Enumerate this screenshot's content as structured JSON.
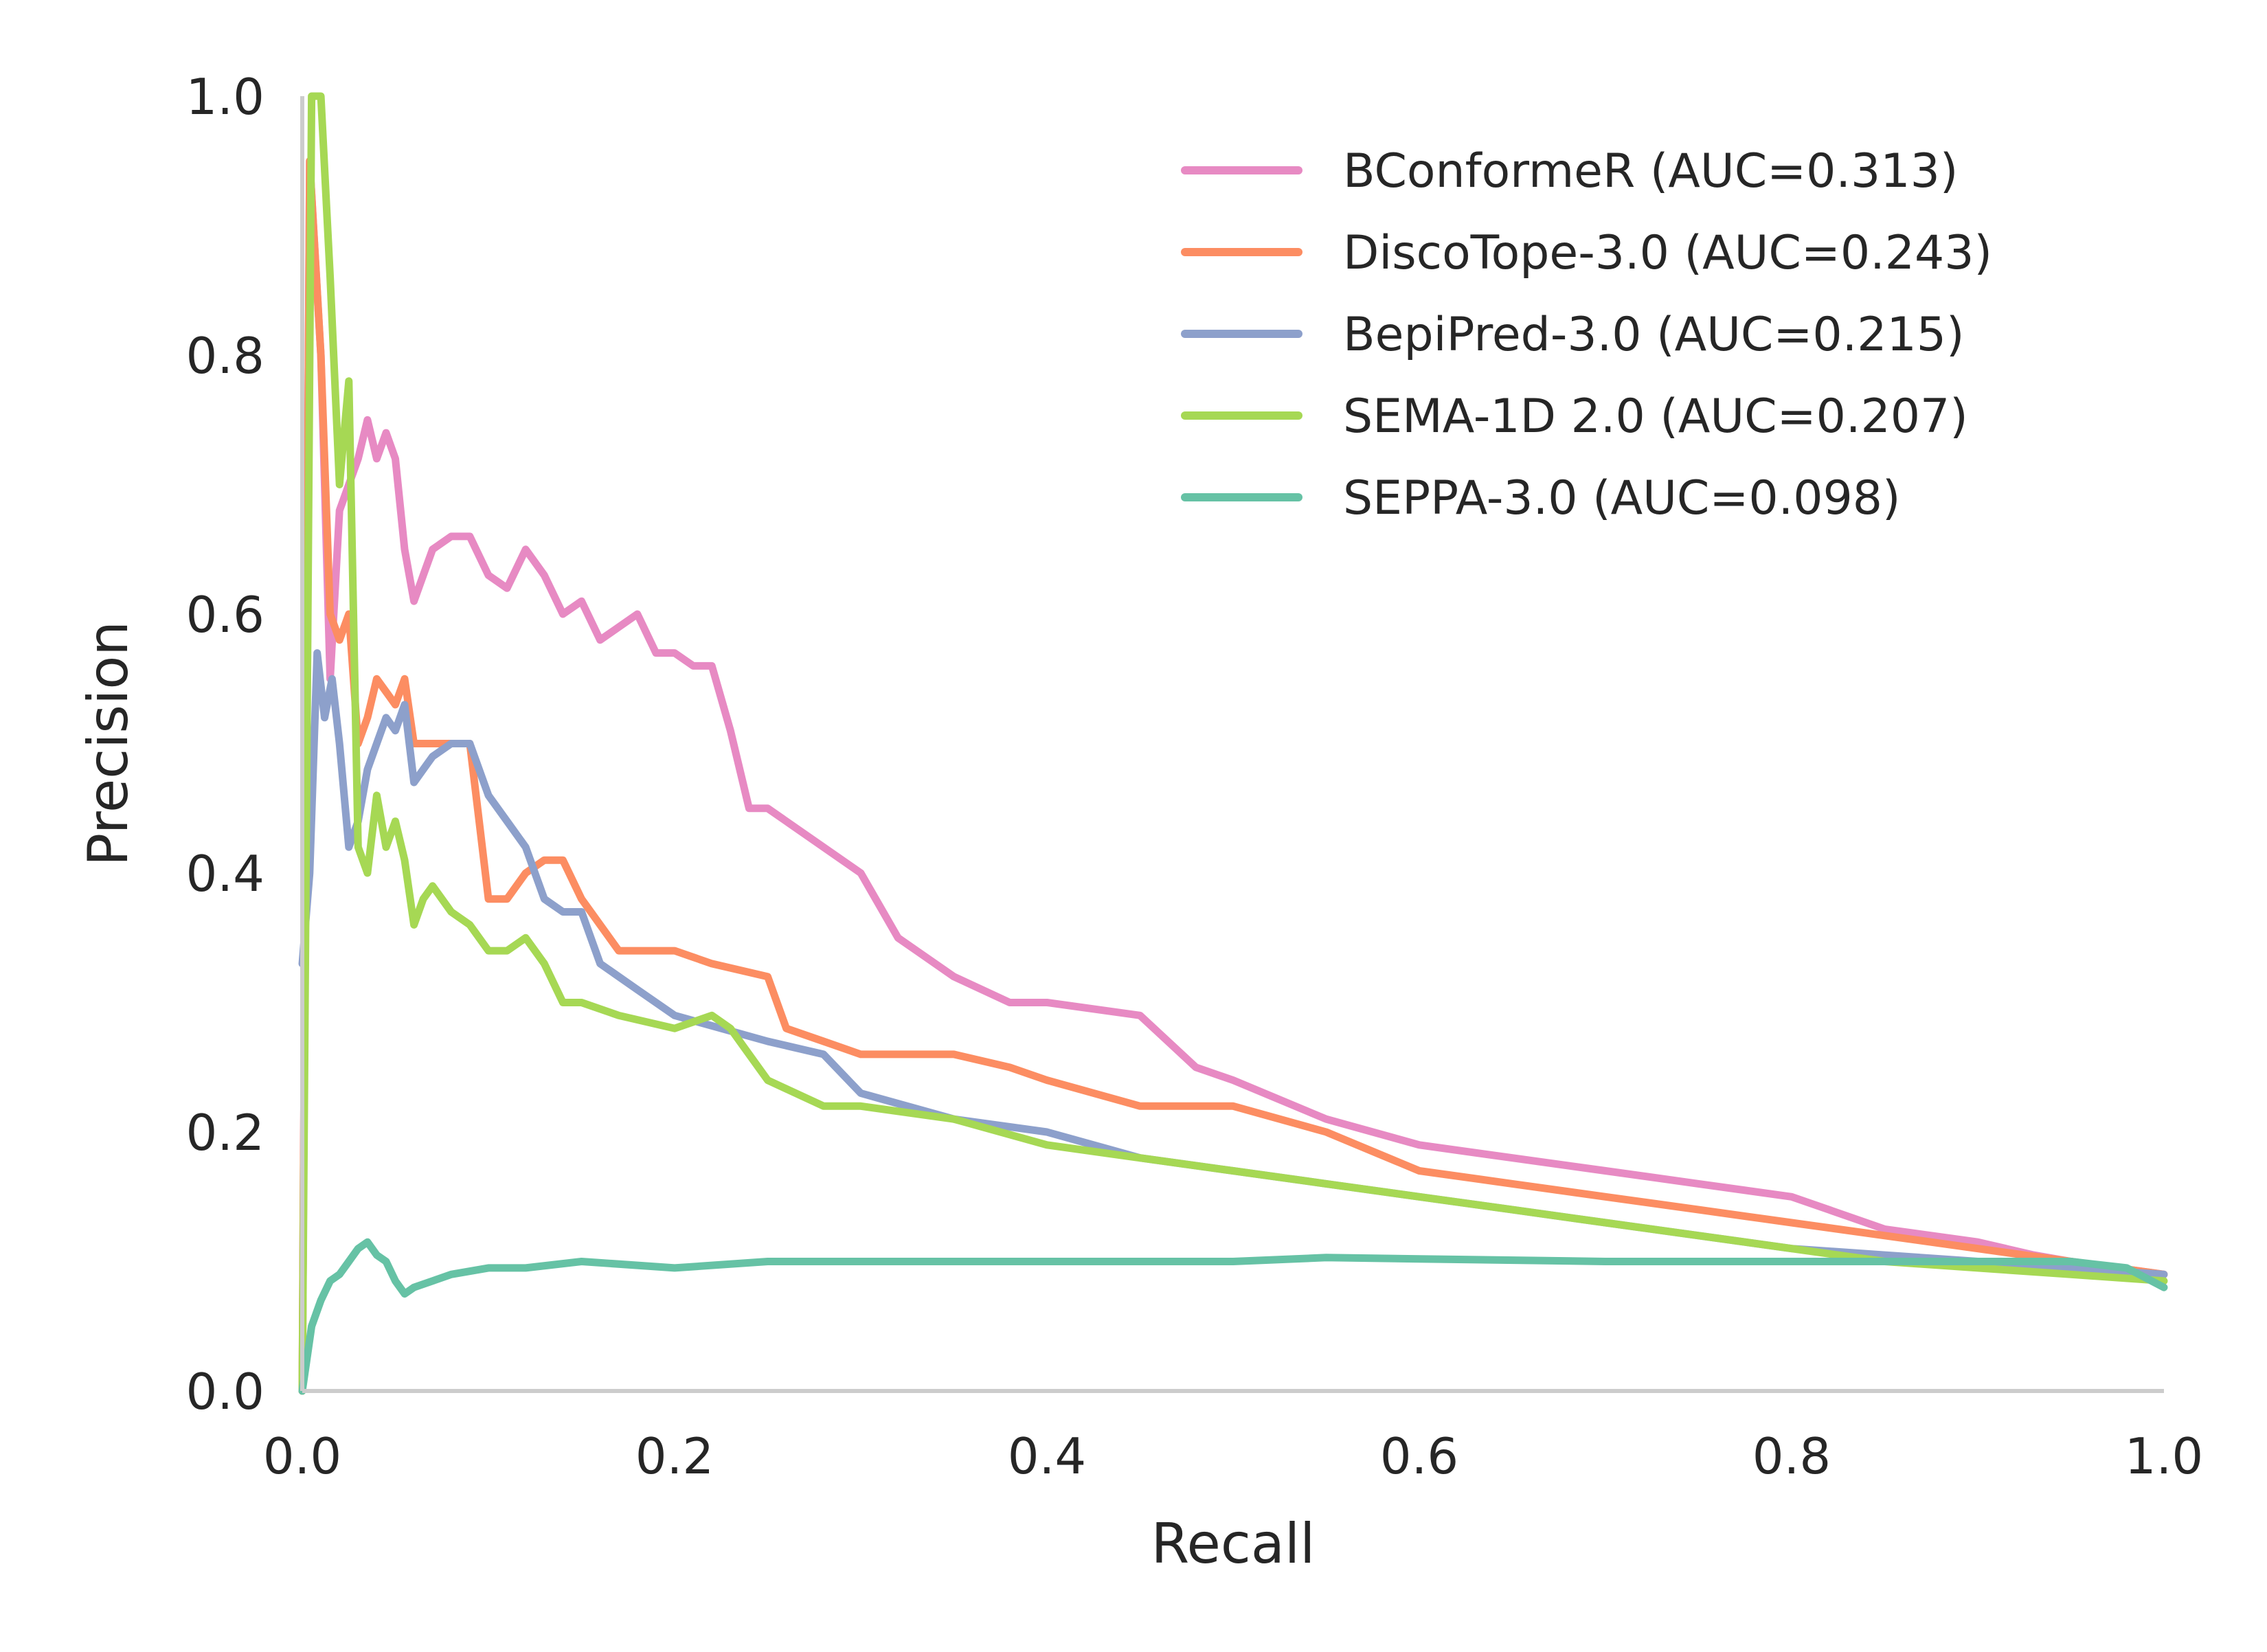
{
  "chart_data": {
    "type": "line",
    "xlabel": "Recall",
    "ylabel": "Precision",
    "xlim": [
      0,
      1
    ],
    "ylim": [
      0,
      1
    ],
    "xticks": [
      "0.0",
      "0.2",
      "0.4",
      "0.6",
      "0.8",
      "1.0"
    ],
    "yticks": [
      "0.0",
      "0.2",
      "0.4",
      "0.6",
      "0.8",
      "1.0"
    ],
    "grid": false,
    "legend_position": "top-right",
    "series": [
      {
        "name": "BConformeR (AUC=0.313)",
        "color": "#e78ac3",
        "x": [
          0.0,
          0.004,
          0.01,
          0.015,
          0.02,
          0.025,
          0.03,
          0.035,
          0.04,
          0.045,
          0.05,
          0.055,
          0.06,
          0.065,
          0.07,
          0.08,
          0.09,
          0.1,
          0.11,
          0.12,
          0.13,
          0.14,
          0.15,
          0.16,
          0.17,
          0.18,
          0.19,
          0.2,
          0.21,
          0.22,
          0.23,
          0.24,
          0.25,
          0.27,
          0.3,
          0.32,
          0.33,
          0.35,
          0.38,
          0.4,
          0.45,
          0.48,
          0.5,
          0.55,
          0.6,
          0.65,
          0.7,
          0.75,
          0.8,
          0.82,
          0.85,
          0.9,
          0.93,
          0.95,
          1.0
        ],
        "y": [
          0.0,
          0.95,
          0.8,
          0.55,
          0.68,
          0.7,
          0.72,
          0.75,
          0.72,
          0.74,
          0.72,
          0.65,
          0.61,
          0.63,
          0.65,
          0.66,
          0.66,
          0.63,
          0.62,
          0.65,
          0.63,
          0.6,
          0.61,
          0.58,
          0.59,
          0.6,
          0.57,
          0.57,
          0.56,
          0.56,
          0.51,
          0.45,
          0.45,
          0.43,
          0.4,
          0.35,
          0.34,
          0.32,
          0.3,
          0.3,
          0.29,
          0.25,
          0.24,
          0.21,
          0.19,
          0.18,
          0.17,
          0.16,
          0.15,
          0.14,
          0.125,
          0.115,
          0.105,
          0.1,
          0.09
        ]
      },
      {
        "name": "DiscoTope-3.0 (AUC=0.243)",
        "color": "#fc8d62",
        "x": [
          0.0,
          0.004,
          0.01,
          0.015,
          0.02,
          0.025,
          0.03,
          0.035,
          0.04,
          0.045,
          0.05,
          0.055,
          0.06,
          0.07,
          0.08,
          0.09,
          0.095,
          0.1,
          0.11,
          0.12,
          0.13,
          0.14,
          0.15,
          0.17,
          0.2,
          0.22,
          0.25,
          0.26,
          0.28,
          0.3,
          0.35,
          0.38,
          0.4,
          0.45,
          0.5,
          0.55,
          0.6,
          0.65,
          0.7,
          0.75,
          0.8,
          0.85,
          0.9,
          0.95,
          1.0
        ],
        "y": [
          0.0,
          0.95,
          0.8,
          0.6,
          0.58,
          0.6,
          0.5,
          0.52,
          0.55,
          0.54,
          0.53,
          0.55,
          0.5,
          0.5,
          0.5,
          0.5,
          0.44,
          0.38,
          0.38,
          0.4,
          0.41,
          0.41,
          0.38,
          0.34,
          0.34,
          0.33,
          0.32,
          0.28,
          0.27,
          0.26,
          0.26,
          0.25,
          0.24,
          0.22,
          0.22,
          0.2,
          0.17,
          0.16,
          0.15,
          0.14,
          0.13,
          0.12,
          0.11,
          0.1,
          0.09
        ]
      },
      {
        "name": "BepiPred-3.0 (AUC=0.215)",
        "color": "#8da0cb",
        "x": [
          0.0,
          0.004,
          0.008,
          0.012,
          0.016,
          0.02,
          0.025,
          0.03,
          0.035,
          0.04,
          0.045,
          0.05,
          0.055,
          0.06,
          0.065,
          0.07,
          0.08,
          0.09,
          0.1,
          0.11,
          0.12,
          0.13,
          0.14,
          0.15,
          0.16,
          0.18,
          0.2,
          0.25,
          0.28,
          0.3,
          0.35,
          0.4,
          0.45,
          0.5,
          0.55,
          0.6,
          0.65,
          0.7,
          0.75,
          0.8,
          0.85,
          0.9,
          0.95,
          1.0
        ],
        "y": [
          0.33,
          0.4,
          0.57,
          0.52,
          0.55,
          0.5,
          0.42,
          0.44,
          0.48,
          0.5,
          0.52,
          0.51,
          0.53,
          0.47,
          0.48,
          0.49,
          0.5,
          0.5,
          0.46,
          0.44,
          0.42,
          0.38,
          0.37,
          0.37,
          0.33,
          0.31,
          0.29,
          0.27,
          0.26,
          0.23,
          0.21,
          0.2,
          0.18,
          0.17,
          0.16,
          0.15,
          0.14,
          0.13,
          0.12,
          0.11,
          0.105,
          0.1,
          0.095,
          0.09
        ]
      },
      {
        "name": "SEMA-1D 2.0 (AUC=0.207)",
        "color": "#a6d854",
        "x": [
          0.0,
          0.005,
          0.01,
          0.015,
          0.02,
          0.025,
          0.03,
          0.035,
          0.04,
          0.045,
          0.05,
          0.055,
          0.06,
          0.065,
          0.07,
          0.08,
          0.09,
          0.1,
          0.11,
          0.12,
          0.13,
          0.14,
          0.15,
          0.17,
          0.2,
          0.22,
          0.23,
          0.25,
          0.28,
          0.3,
          0.35,
          0.4,
          0.45,
          0.5,
          0.55,
          0.6,
          0.65,
          0.7,
          0.75,
          0.8,
          0.85,
          0.9,
          0.95,
          1.0
        ],
        "y": [
          0.0,
          1.0,
          1.0,
          0.86,
          0.7,
          0.78,
          0.42,
          0.4,
          0.46,
          0.42,
          0.44,
          0.41,
          0.36,
          0.38,
          0.39,
          0.37,
          0.36,
          0.34,
          0.34,
          0.35,
          0.33,
          0.3,
          0.3,
          0.29,
          0.28,
          0.29,
          0.28,
          0.24,
          0.22,
          0.22,
          0.21,
          0.19,
          0.18,
          0.17,
          0.16,
          0.15,
          0.14,
          0.13,
          0.12,
          0.11,
          0.1,
          0.095,
          0.09,
          0.085
        ]
      },
      {
        "name": "SEPPA-3.0 (AUC=0.098)",
        "color": "#66c2a5",
        "x": [
          0.0,
          0.005,
          0.01,
          0.015,
          0.02,
          0.025,
          0.03,
          0.035,
          0.04,
          0.045,
          0.05,
          0.055,
          0.06,
          0.07,
          0.08,
          0.1,
          0.12,
          0.15,
          0.2,
          0.25,
          0.3,
          0.4,
          0.5,
          0.55,
          0.6,
          0.7,
          0.8,
          0.85,
          0.9,
          0.95,
          0.98,
          1.0
        ],
        "y": [
          0.0,
          0.05,
          0.07,
          0.085,
          0.09,
          0.1,
          0.11,
          0.115,
          0.105,
          0.1,
          0.085,
          0.075,
          0.08,
          0.085,
          0.09,
          0.095,
          0.095,
          0.1,
          0.095,
          0.1,
          0.1,
          0.1,
          0.1,
          0.103,
          0.102,
          0.1,
          0.1,
          0.1,
          0.1,
          0.1,
          0.095,
          0.08
        ]
      }
    ]
  }
}
